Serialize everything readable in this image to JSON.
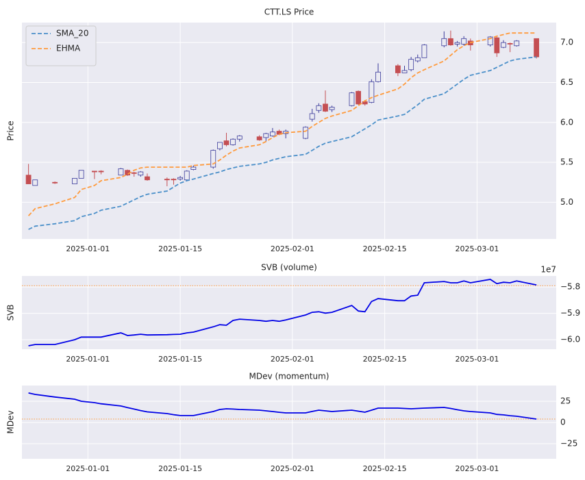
{
  "chart_data": [
    {
      "type": "candlestick",
      "title": "CTT.LS Price",
      "ylabel": "Price",
      "x": [
        "2024-12-23",
        "2024-12-24",
        "2024-12-27",
        "2024-12-30",
        "2024-12-31",
        "2025-01-02",
        "2025-01-03",
        "2025-01-06",
        "2025-01-07",
        "2025-01-08",
        "2025-01-09",
        "2025-01-10",
        "2025-01-13",
        "2025-01-14",
        "2025-01-15",
        "2025-01-16",
        "2025-01-17",
        "2025-01-20",
        "2025-01-21",
        "2025-01-22",
        "2025-01-23",
        "2025-01-24",
        "2025-01-27",
        "2025-01-28",
        "2025-01-29",
        "2025-01-30",
        "2025-01-31",
        "2025-02-03",
        "2025-02-04",
        "2025-02-05",
        "2025-02-06",
        "2025-02-07",
        "2025-02-10",
        "2025-02-11",
        "2025-02-12",
        "2025-02-13",
        "2025-02-14",
        "2025-02-17",
        "2025-02-18",
        "2025-02-19",
        "2025-02-20",
        "2025-02-21",
        "2025-02-24",
        "2025-02-25",
        "2025-02-26",
        "2025-02-27",
        "2025-02-28",
        "2025-03-03",
        "2025-03-04",
        "2025-03-05",
        "2025-03-06",
        "2025-03-07",
        "2025-03-10"
      ],
      "open": [
        5.34,
        5.21,
        5.25,
        5.23,
        5.3,
        5.39,
        5.39,
        5.34,
        5.4,
        5.37,
        5.34,
        5.32,
        5.29,
        5.29,
        5.29,
        5.28,
        5.41,
        5.44,
        5.67,
        5.77,
        5.72,
        5.79,
        5.82,
        5.81,
        5.83,
        5.89,
        5.86,
        5.8,
        6.04,
        6.15,
        6.23,
        6.16,
        6.21,
        6.39,
        6.26,
        6.25,
        6.51,
        6.71,
        6.62,
        6.66,
        6.77,
        6.81,
        6.96,
        7.05,
        6.98,
        6.98,
        7.02,
        6.97,
        7.06,
        6.94,
        6.99,
        6.96,
        7.05
      ],
      "high": [
        5.48,
        5.28,
        5.26,
        5.3,
        5.4,
        5.39,
        5.4,
        5.43,
        5.41,
        5.38,
        5.39,
        5.36,
        5.31,
        5.3,
        5.33,
        5.4,
        5.46,
        5.66,
        5.75,
        5.87,
        5.8,
        5.84,
        5.84,
        5.87,
        5.93,
        5.91,
        5.91,
        5.95,
        6.17,
        6.24,
        6.4,
        6.21,
        6.38,
        6.4,
        6.28,
        6.54,
        6.74,
        6.73,
        6.71,
        6.82,
        6.85,
        6.98,
        7.14,
        7.15,
        7.02,
        7.08,
        7.05,
        7.08,
        7.07,
        7.03,
        7.0,
        7.03,
        7.05
      ],
      "low": [
        5.23,
        5.21,
        5.23,
        5.23,
        5.3,
        5.29,
        5.35,
        5.34,
        5.33,
        5.32,
        5.32,
        5.27,
        5.2,
        5.22,
        5.27,
        5.27,
        5.4,
        5.42,
        5.65,
        5.7,
        5.71,
        5.76,
        5.77,
        5.76,
        5.82,
        5.84,
        5.8,
        5.79,
        6.01,
        6.12,
        6.13,
        6.13,
        6.2,
        6.22,
        6.21,
        6.24,
        6.5,
        6.58,
        6.62,
        6.64,
        6.75,
        6.81,
        6.94,
        6.96,
        6.95,
        6.96,
        6.9,
        6.95,
        6.82,
        6.93,
        6.88,
        6.95,
        6.8
      ],
      "close": [
        5.23,
        5.28,
        5.24,
        5.3,
        5.4,
        5.38,
        5.38,
        5.42,
        5.34,
        5.36,
        5.38,
        5.28,
        5.28,
        5.28,
        5.31,
        5.39,
        5.44,
        5.65,
        5.75,
        5.72,
        5.79,
        5.83,
        5.78,
        5.86,
        5.88,
        5.85,
        5.89,
        5.94,
        6.11,
        6.21,
        6.14,
        6.19,
        6.37,
        6.23,
        6.23,
        6.51,
        6.63,
        6.62,
        6.65,
        6.79,
        6.81,
        6.97,
        7.05,
        6.97,
        7.0,
        7.05,
        6.97,
        7.07,
        6.87,
        7.0,
        6.98,
        7.02,
        6.82
      ],
      "up_color": "#3a3a9a",
      "down_color": "#c44e52",
      "series": [
        {
          "name": "SMA_20",
          "color": "#4a8fc9",
          "line_style": "dashed",
          "values": [
            4.66,
            4.7,
            4.73,
            4.77,
            4.82,
            4.86,
            4.9,
            4.95,
            4.99,
            5.03,
            5.07,
            5.1,
            5.14,
            5.19,
            5.24,
            5.27,
            5.29,
            5.36,
            5.38,
            5.41,
            5.43,
            5.45,
            5.48,
            5.5,
            5.53,
            5.55,
            5.57,
            5.6,
            5.65,
            5.7,
            5.74,
            5.76,
            5.82,
            5.87,
            5.92,
            5.97,
            6.03,
            6.08,
            6.1,
            6.16,
            6.22,
            6.29,
            6.36,
            6.42,
            6.48,
            6.54,
            6.59,
            6.65,
            6.69,
            6.73,
            6.77,
            6.79,
            6.82
          ]
        },
        {
          "name": "EHMA",
          "color": "#ff9a3c",
          "line_style": "dashed",
          "values": [
            4.83,
            4.92,
            4.98,
            5.06,
            5.16,
            5.21,
            5.27,
            5.31,
            5.35,
            5.4,
            5.43,
            5.44,
            5.44,
            5.44,
            5.44,
            5.44,
            5.46,
            5.48,
            5.53,
            5.59,
            5.64,
            5.68,
            5.72,
            5.76,
            5.81,
            5.85,
            5.87,
            5.89,
            5.95,
            6.0,
            6.05,
            6.08,
            6.15,
            6.21,
            6.27,
            6.31,
            6.34,
            6.42,
            6.48,
            6.56,
            6.62,
            6.66,
            6.77,
            6.84,
            6.91,
            6.96,
            7.0,
            7.05,
            7.08,
            7.1,
            7.12,
            7.12,
            7.12
          ]
        }
      ],
      "xlim": [
        "2024-12-22",
        "2025-03-13"
      ],
      "xticks": [
        "2025-01-01",
        "2025-01-15",
        "2025-02-01",
        "2025-02-15",
        "2025-03-01"
      ],
      "ylim": [
        4.54,
        7.25
      ],
      "yticks": [
        {
          "value": 5,
          "label": "5.0"
        },
        5.5,
        {
          "value": 6,
          "label": "6.0"
        },
        6.5,
        {
          "value": 7,
          "label": "7.0"
        }
      ],
      "grid": true,
      "legend": "upper left"
    },
    {
      "type": "line",
      "title": "SVB (volume)",
      "ylabel": "SVB",
      "offset_label": "1e7",
      "x": [
        "2024-12-23",
        "2024-12-24",
        "2024-12-27",
        "2024-12-30",
        "2024-12-31",
        "2025-01-02",
        "2025-01-03",
        "2025-01-06",
        "2025-01-07",
        "2025-01-08",
        "2025-01-09",
        "2025-01-10",
        "2025-01-13",
        "2025-01-14",
        "2025-01-15",
        "2025-01-16",
        "2025-01-17",
        "2025-01-20",
        "2025-01-21",
        "2025-01-22",
        "2025-01-23",
        "2025-01-24",
        "2025-01-27",
        "2025-01-28",
        "2025-01-29",
        "2025-01-30",
        "2025-01-31",
        "2025-02-03",
        "2025-02-04",
        "2025-02-05",
        "2025-02-06",
        "2025-02-07",
        "2025-02-10",
        "2025-02-11",
        "2025-02-12",
        "2025-02-13",
        "2025-02-14",
        "2025-02-17",
        "2025-02-18",
        "2025-02-19",
        "2025-02-20",
        "2025-02-21",
        "2025-02-24",
        "2025-02-25",
        "2025-02-26",
        "2025-02-27",
        "2025-02-28",
        "2025-03-03",
        "2025-03-04",
        "2025-03-05",
        "2025-03-06",
        "2025-03-07",
        "2025-03-10"
      ],
      "values": [
        -6.023,
        -6.018,
        -6.018,
        -6.0,
        -5.99,
        -5.99,
        -5.99,
        -5.974,
        -5.984,
        -5.982,
        -5.979,
        -5.982,
        -5.981,
        -5.98,
        -5.979,
        -5.974,
        -5.971,
        -5.951,
        -5.943,
        -5.945,
        -5.927,
        -5.922,
        -5.927,
        -5.93,
        -5.927,
        -5.93,
        -5.925,
        -5.906,
        -5.896,
        -5.894,
        -5.899,
        -5.896,
        -5.87,
        -5.891,
        -5.894,
        -5.855,
        -5.844,
        -5.852,
        -5.852,
        -5.834,
        -5.831,
        -5.784,
        -5.779,
        -5.784,
        -5.784,
        -5.777,
        -5.784,
        -5.771,
        -5.787,
        -5.782,
        -5.784,
        -5.777,
        -5.792
      ],
      "color": "#0000e6",
      "hline": -5.795,
      "hline_color": "#ff9a3c",
      "xlim": [
        "2024-12-22",
        "2025-03-13"
      ],
      "xticks": [
        "2025-01-01",
        "2025-01-15",
        "2025-02-01",
        "2025-02-15",
        "2025-03-01"
      ],
      "ylim": [
        -6.036,
        -5.758
      ],
      "yticks": [
        {
          "value": -5.8,
          "label": "−5.8"
        },
        {
          "value": -5.9,
          "label": "−5.9"
        },
        {
          "value": -6,
          "label": "−6.0"
        }
      ],
      "grid": true
    },
    {
      "type": "line",
      "title": "MDev (momentum)",
      "ylabel": "MDev",
      "x": [
        "2024-12-23",
        "2024-12-24",
        "2024-12-27",
        "2024-12-30",
        "2024-12-31",
        "2025-01-02",
        "2025-01-03",
        "2025-01-06",
        "2025-01-07",
        "2025-01-08",
        "2025-01-09",
        "2025-01-10",
        "2025-01-13",
        "2025-01-14",
        "2025-01-15",
        "2025-01-16",
        "2025-01-17",
        "2025-01-20",
        "2025-01-21",
        "2025-01-22",
        "2025-01-23",
        "2025-01-24",
        "2025-01-27",
        "2025-01-28",
        "2025-01-29",
        "2025-01-30",
        "2025-01-31",
        "2025-02-03",
        "2025-02-04",
        "2025-02-05",
        "2025-02-06",
        "2025-02-07",
        "2025-02-10",
        "2025-02-11",
        "2025-02-12",
        "2025-02-13",
        "2025-02-14",
        "2025-02-17",
        "2025-02-18",
        "2025-02-19",
        "2025-02-20",
        "2025-02-21",
        "2025-02-24",
        "2025-02-25",
        "2025-02-26",
        "2025-02-27",
        "2025-02-28",
        "2025-03-03",
        "2025-03-04",
        "2025-03-05",
        "2025-03-06",
        "2025-03-07",
        "2025-03-10"
      ],
      "values": [
        34.7,
        33.0,
        30.0,
        27.4,
        25.0,
        23.4,
        22.0,
        19.4,
        17.5,
        15.8,
        14.0,
        12.5,
        10.5,
        9.2,
        8.1,
        8.1,
        8.1,
        12.9,
        15.3,
        16.1,
        15.8,
        15.3,
        14.5,
        13.7,
        12.9,
        12.0,
        11.3,
        11.3,
        13.0,
        14.5,
        13.7,
        12.9,
        14.5,
        13.3,
        12.1,
        14.5,
        16.9,
        16.9,
        16.5,
        16.1,
        16.5,
        16.9,
        17.7,
        16.5,
        15.0,
        13.7,
        12.9,
        11.3,
        9.5,
        8.9,
        8.0,
        7.3,
        4.0
      ],
      "color": "#0000e6",
      "hline": 4.0,
      "hline_color": "#ff9a3c",
      "xlim": [
        "2024-12-22",
        "2025-03-13"
      ],
      "xticks": [
        "2025-01-01",
        "2025-01-15",
        "2025-02-01",
        "2025-02-15",
        "2025-03-01"
      ],
      "ylim": [
        -42.7,
        43.5
      ],
      "yticks": [
        25,
        0,
        {
          "value": -25,
          "label": "−25"
        }
      ],
      "grid": true
    }
  ]
}
